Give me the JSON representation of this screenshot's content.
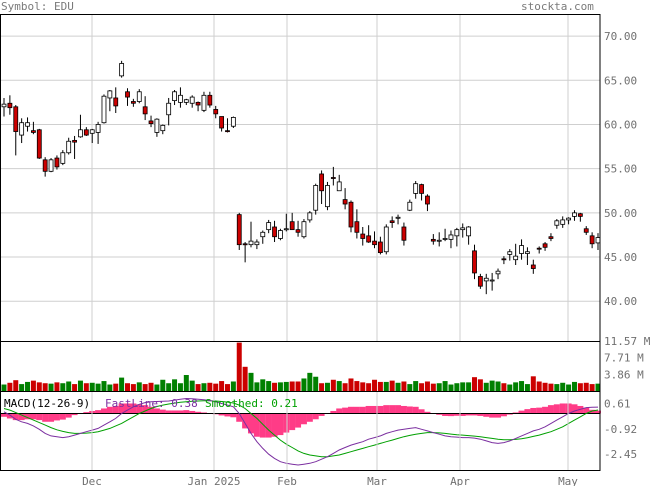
{
  "header": {
    "symbol_label": "Symbol: EDU",
    "site": "stockta.com"
  },
  "colors": {
    "up_fill": "#ffffff",
    "down_fill": "#cc0000",
    "volume_up": "#008000",
    "volume_down": "#cc0000",
    "histogram": "#ff3c87",
    "macd_line": "#7b2fa0",
    "signal_line": "#00a000",
    "grid": "#cfcfcf",
    "frame": "#000000",
    "label": "#707070"
  },
  "chart_data": [
    {
      "type": "candlestick",
      "title": "",
      "ylim": [
        35.5,
        72.5
      ],
      "y_ticks": [
        "70.00",
        "65.00",
        "60.00",
        "55.00",
        "50.00",
        "45.00",
        "40.00"
      ],
      "x_ticks": [
        "Dec",
        "Jan 2025",
        "Feb",
        "Mar",
        "Apr",
        "May"
      ],
      "grid": true,
      "ohlc": [
        [
          62.0,
          63.0,
          60.9,
          62.3
        ],
        [
          62.4,
          63.3,
          61.1,
          61.9
        ],
        [
          62.0,
          62.2,
          56.5,
          59.2
        ],
        [
          58.8,
          60.7,
          57.9,
          60.2
        ],
        [
          59.8,
          60.8,
          59.2,
          60.2
        ],
        [
          59.3,
          60.3,
          58.9,
          59.1
        ],
        [
          59.4,
          59.5,
          56.1,
          56.2
        ],
        [
          56.0,
          56.3,
          54.1,
          54.7
        ],
        [
          54.7,
          56.2,
          54.6,
          56.0
        ],
        [
          56.2,
          56.5,
          54.9,
          55.2
        ],
        [
          55.6,
          57.1,
          55.4,
          56.8
        ],
        [
          56.8,
          58.5,
          56.6,
          58.1
        ],
        [
          58.2,
          58.7,
          56.1,
          58.0
        ],
        [
          58.6,
          61.1,
          58.5,
          59.4
        ],
        [
          59.4,
          59.7,
          58.7,
          58.8
        ],
        [
          59.0,
          59.5,
          57.9,
          59.4
        ],
        [
          59.1,
          60.3,
          57.8,
          60.0
        ],
        [
          60.2,
          63.4,
          60.1,
          63.2
        ],
        [
          63.0,
          63.9,
          61.5,
          63.8
        ],
        [
          63.0,
          64.2,
          61.3,
          62.1
        ],
        [
          65.5,
          67.2,
          65.3,
          66.9
        ],
        [
          63.7,
          64.1,
          62.1,
          63.1
        ],
        [
          62.6,
          62.9,
          62.0,
          62.4
        ],
        [
          62.6,
          64.0,
          62.4,
          63.7
        ],
        [
          62.0,
          63.2,
          60.5,
          61.2
        ],
        [
          60.4,
          61.0,
          59.7,
          60.1
        ],
        [
          59.1,
          60.7,
          58.6,
          60.6
        ],
        [
          59.3,
          60.0,
          58.9,
          59.9
        ],
        [
          61.1,
          63.0,
          59.9,
          62.4
        ],
        [
          62.7,
          63.9,
          62.2,
          63.7
        ],
        [
          62.5,
          64.2,
          61.9,
          63.3
        ],
        [
          62.5,
          62.9,
          62.2,
          62.8
        ],
        [
          62.4,
          63.3,
          61.9,
          63.1
        ],
        [
          62.5,
          62.6,
          61.5,
          62.2
        ],
        [
          61.6,
          63.7,
          61.4,
          63.3
        ],
        [
          63.3,
          63.7,
          61.9,
          62.2
        ],
        [
          61.7,
          62.1,
          60.7,
          61.2
        ],
        [
          60.9,
          60.9,
          59.2,
          59.6
        ],
        [
          59.3,
          60.7,
          59.1,
          59.2
        ],
        [
          59.8,
          60.9,
          59.6,
          60.8
        ],
        [
          49.8,
          50.0,
          45.8,
          46.4
        ],
        [
          46.5,
          46.7,
          44.4,
          46.4
        ],
        [
          46.4,
          49.0,
          46.1,
          46.8
        ],
        [
          46.4,
          47.0,
          45.9,
          46.7
        ],
        [
          47.3,
          48.0,
          46.5,
          47.8
        ],
        [
          48.1,
          49.2,
          47.7,
          48.9
        ],
        [
          48.4,
          49.1,
          46.7,
          47.3
        ],
        [
          47.1,
          48.2,
          46.9,
          48.0
        ],
        [
          48.2,
          49.9,
          47.9,
          48.2
        ],
        [
          49.0,
          50.0,
          48.4,
          48.1
        ],
        [
          48.1,
          49.1,
          47.3,
          47.8
        ],
        [
          47.3,
          49.3,
          47.1,
          49.0
        ],
        [
          49.2,
          50.2,
          48.9,
          50.0
        ],
        [
          50.3,
          53.3,
          49.8,
          53.1
        ],
        [
          54.4,
          54.8,
          51.0,
          52.5
        ],
        [
          50.7,
          53.5,
          50.3,
          53.1
        ],
        [
          54.0,
          55.2,
          53.1,
          53.9
        ],
        [
          52.5,
          54.3,
          52.5,
          53.5
        ],
        [
          51.5,
          52.8,
          50.4,
          51.0
        ],
        [
          51.2,
          51.4,
          47.8,
          48.4
        ],
        [
          49.0,
          50.4,
          47.1,
          47.8
        ],
        [
          47.6,
          48.4,
          46.3,
          47.1
        ],
        [
          47.4,
          48.6,
          46.6,
          46.7
        ],
        [
          46.8,
          47.9,
          46.0,
          46.4
        ],
        [
          46.7,
          47.3,
          45.3,
          45.5
        ],
        [
          45.6,
          48.7,
          45.3,
          48.4
        ],
        [
          49.1,
          49.6,
          48.3,
          48.9
        ],
        [
          49.4,
          49.8,
          48.7,
          49.5
        ],
        [
          48.4,
          48.9,
          46.3,
          46.9
        ],
        [
          50.3,
          51.5,
          50.2,
          51.2
        ],
        [
          52.2,
          53.6,
          51.6,
          53.3
        ],
        [
          53.2,
          53.3,
          51.4,
          52.2
        ],
        [
          51.9,
          52.1,
          50.2,
          51.0
        ],
        [
          47.0,
          47.6,
          46.4,
          46.8
        ],
        [
          46.9,
          47.8,
          46.2,
          46.9
        ],
        [
          47.0,
          48.2,
          46.8,
          47.1
        ],
        [
          47.0,
          48.0,
          46.0,
          47.5
        ],
        [
          47.4,
          48.3,
          46.2,
          48.1
        ],
        [
          48.1,
          48.8,
          47.2,
          48.3
        ],
        [
          47.4,
          48.5,
          46.4,
          48.4
        ],
        [
          45.7,
          46.4,
          42.5,
          43.2
        ],
        [
          42.8,
          43.1,
          41.4,
          41.7
        ],
        [
          42.3,
          43.1,
          40.8,
          42.6
        ],
        [
          42.4,
          43.2,
          41.2,
          42.4
        ],
        [
          43.1,
          43.7,
          42.5,
          43.4
        ],
        [
          44.8,
          45.1,
          44.2,
          44.7
        ],
        [
          45.3,
          45.9,
          44.6,
          45.6
        ],
        [
          44.7,
          46.5,
          44.1,
          45.1
        ],
        [
          45.4,
          47.0,
          44.7,
          46.3
        ],
        [
          45.4,
          46.1,
          44.1,
          45.6
        ],
        [
          44.1,
          44.7,
          43.1,
          43.7
        ],
        [
          46.0,
          46.2,
          45.4,
          45.9
        ],
        [
          46.5,
          46.7,
          45.7,
          46.1
        ],
        [
          47.3,
          47.7,
          46.8,
          47.1
        ],
        [
          48.6,
          49.3,
          48.2,
          49.1
        ],
        [
          48.7,
          49.6,
          48.3,
          49.2
        ],
        [
          49.2,
          49.5,
          48.7,
          49.4
        ],
        [
          49.6,
          50.3,
          49.1,
          50.0
        ],
        [
          49.9,
          50.0,
          49.0,
          49.6
        ],
        [
          48.2,
          48.5,
          47.5,
          47.8
        ],
        [
          47.4,
          47.8,
          46.0,
          46.5
        ],
        [
          46.6,
          47.7,
          45.8,
          47.2
        ]
      ],
      "volume_y_ticks": [
        "11.57 M",
        "7.71 M",
        "3.86 M"
      ],
      "volume_max": 11.57,
      "volume": [
        1.5,
        1.9,
        2.5,
        1.6,
        2.1,
        2.4,
        2.0,
        1.8,
        1.7,
        2.0,
        1.8,
        2.2,
        1.6,
        2.4,
        1.8,
        1.9,
        1.7,
        2.3,
        1.5,
        1.7,
        3.1,
        1.8,
        1.6,
        2.0,
        1.6,
        1.9,
        1.5,
        2.6,
        1.8,
        2.7,
        1.8,
        3.7,
        2.4,
        1.6,
        1.8,
        1.9,
        1.7,
        2.3,
        1.6,
        2.2,
        11.2,
        5.6,
        4.2,
        2.0,
        2.7,
        2.3,
        1.9,
        2.0,
        2.1,
        2.2,
        2.2,
        2.9,
        4.2,
        3.3,
        1.8,
        1.9,
        2.6,
        2.3,
        1.8,
        2.9,
        2.3,
        2.0,
        1.8,
        2.6,
        2.1,
        2.1,
        2.4,
        1.9,
        2.2,
        1.6,
        2.3,
        1.8,
        2.2,
        1.7,
        1.8,
        2.3,
        1.5,
        1.8,
        2.0,
        2.0,
        3.2,
        2.7,
        1.9,
        2.4,
        2.2,
        1.8,
        1.5,
        2.0,
        2.3,
        1.6,
        3.4,
        2.2,
        1.9,
        1.7,
        1.6,
        1.9,
        1.5,
        2.1,
        1.8,
        1.9,
        1.6,
        1.7
      ],
      "macd_label": "MACD(12-26-9)",
      "fast_line_label": "FastLine: 0.38",
      "smoothed_label": "Smoothed: 0.21",
      "macd_y_ticks": [
        0.61,
        -0.92,
        -2.45
      ],
      "macd_ylim": [
        -3.4,
        1.35
      ],
      "macd_line": [
        0.1,
        -0.1,
        -0.35,
        -0.5,
        -0.6,
        -0.75,
        -0.95,
        -1.2,
        -1.35,
        -1.4,
        -1.45,
        -1.4,
        -1.3,
        -1.2,
        -1.1,
        -1.0,
        -0.9,
        -0.7,
        -0.5,
        -0.3,
        0.0,
        0.2,
        0.4,
        0.55,
        0.65,
        0.7,
        0.72,
        0.73,
        0.75,
        0.8,
        0.85,
        0.9,
        0.88,
        0.85,
        0.82,
        0.78,
        0.7,
        0.6,
        0.5,
        0.4,
        0.0,
        -0.6,
        -1.2,
        -1.7,
        -2.1,
        -2.45,
        -2.7,
        -2.9,
        -3.0,
        -3.05,
        -3.1,
        -3.05,
        -3.0,
        -2.9,
        -2.75,
        -2.6,
        -2.4,
        -2.2,
        -2.05,
        -1.9,
        -1.8,
        -1.7,
        -1.55,
        -1.45,
        -1.35,
        -1.2,
        -1.1,
        -1.0,
        -0.95,
        -0.9,
        -0.85,
        -0.95,
        -1.05,
        -1.15,
        -1.25,
        -1.35,
        -1.4,
        -1.42,
        -1.45,
        -1.45,
        -1.48,
        -1.55,
        -1.65,
        -1.75,
        -1.8,
        -1.75,
        -1.65,
        -1.5,
        -1.35,
        -1.2,
        -1.05,
        -0.95,
        -0.8,
        -0.6,
        -0.4,
        -0.2,
        0.0,
        0.15,
        0.25,
        0.35,
        0.37,
        0.38
      ],
      "signal_line": [
        0.3,
        0.2,
        0.05,
        -0.1,
        -0.25,
        -0.4,
        -0.55,
        -0.7,
        -0.85,
        -0.98,
        -1.08,
        -1.15,
        -1.2,
        -1.2,
        -1.18,
        -1.15,
        -1.1,
        -1.0,
        -0.9,
        -0.75,
        -0.6,
        -0.4,
        -0.2,
        0.0,
        0.15,
        0.3,
        0.42,
        0.5,
        0.57,
        0.62,
        0.67,
        0.7,
        0.73,
        0.75,
        0.76,
        0.76,
        0.75,
        0.72,
        0.68,
        0.63,
        0.5,
        0.3,
        0.0,
        -0.3,
        -0.65,
        -1.0,
        -1.3,
        -1.6,
        -1.85,
        -2.05,
        -2.25,
        -2.4,
        -2.5,
        -2.55,
        -2.6,
        -2.6,
        -2.55,
        -2.5,
        -2.4,
        -2.3,
        -2.2,
        -2.1,
        -2.0,
        -1.9,
        -1.8,
        -1.7,
        -1.6,
        -1.5,
        -1.4,
        -1.32,
        -1.25,
        -1.2,
        -1.15,
        -1.15,
        -1.17,
        -1.2,
        -1.24,
        -1.28,
        -1.3,
        -1.33,
        -1.36,
        -1.4,
        -1.45,
        -1.5,
        -1.55,
        -1.58,
        -1.58,
        -1.56,
        -1.52,
        -1.46,
        -1.38,
        -1.3,
        -1.2,
        -1.1,
        -0.95,
        -0.8,
        -0.6,
        -0.4,
        -0.2,
        0.0,
        0.15,
        0.21
      ]
    }
  ]
}
